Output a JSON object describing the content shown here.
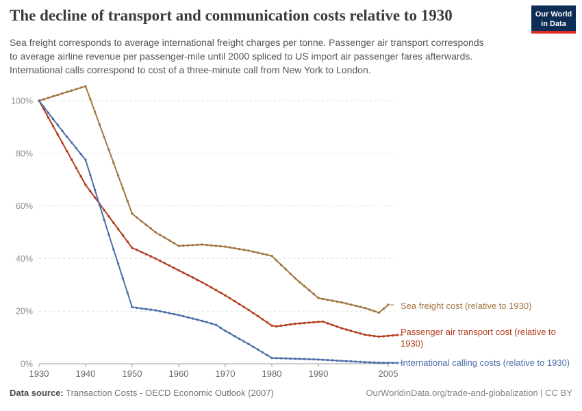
{
  "header": {
    "title": "The decline of transport and communication costs relative to 1930",
    "subtitle_lines": [
      "Sea freight corresponds to average international freight charges per tonne. Passenger air transport corresponds",
      "to average airline revenue per passenger-mile until 2000 spliced to US import air passenger fares afterwards.",
      "International calls correspond to cost of a three-minute call from New York to London."
    ],
    "logo": {
      "line1": "Our World",
      "line2": "in Data",
      "bg": "#0d2d54",
      "bar": "#e02b20"
    }
  },
  "chart_data": {
    "type": "line",
    "title": "The decline of transport and communication costs relative to 1930",
    "xlabel": "",
    "ylabel": "",
    "x_range": [
      1930,
      2007
    ],
    "y_range": [
      0,
      106
    ],
    "grid": "dashed-horizontal",
    "legend_position": "right-end-labels",
    "x_tick_values": [
      1930,
      1940,
      1950,
      1960,
      1970,
      1980,
      1990,
      2005
    ],
    "x_tick_labels": [
      "1930",
      "1940",
      "1950",
      "1960",
      "1970",
      "1980",
      "1990",
      "2005"
    ],
    "y_tick_values": [
      0,
      20,
      40,
      60,
      80,
      100
    ],
    "y_tick_labels": [
      "0%",
      "20%",
      "40%",
      "60%",
      "80%",
      "100%"
    ],
    "series": [
      {
        "name": "Sea freight cost (relative to 1930)",
        "color": "#a1753f",
        "points": [
          [
            1930,
            100
          ],
          [
            1940,
            105.5
          ],
          [
            1950,
            57
          ],
          [
            1955,
            50
          ],
          [
            1960,
            44.8
          ],
          [
            1965,
            45.3
          ],
          [
            1970,
            44.5
          ],
          [
            1975,
            43
          ],
          [
            1980,
            41
          ],
          [
            1985,
            32.5
          ],
          [
            1990,
            25
          ],
          [
            1991,
            24.6
          ],
          [
            1995,
            23.3
          ],
          [
            2000,
            21.2
          ],
          [
            2003,
            19.4
          ],
          [
            2005,
            22.4
          ]
        ]
      },
      {
        "name": "Passenger air transport cost (relative to 1930)",
        "color": "#b23c1b",
        "points": [
          [
            1930,
            100
          ],
          [
            1935,
            84
          ],
          [
            1940,
            68
          ],
          [
            1945,
            56
          ],
          [
            1950,
            44
          ],
          [
            1951,
            43.3
          ],
          [
            1955,
            40
          ],
          [
            1960,
            35.5
          ],
          [
            1965,
            31
          ],
          [
            1970,
            26
          ],
          [
            1975,
            20.5
          ],
          [
            1980,
            14.5
          ],
          [
            1981,
            14.2
          ],
          [
            1985,
            15.2
          ],
          [
            1990,
            15.9
          ],
          [
            1991,
            16
          ],
          [
            1995,
            13.5
          ],
          [
            2000,
            11
          ],
          [
            2003,
            10.3
          ],
          [
            2005,
            10.6
          ],
          [
            2007,
            10.9
          ]
        ]
      },
      {
        "name": "International calling costs (relative to 1930)",
        "color": "#4c6ea9",
        "points": [
          [
            1930,
            100
          ],
          [
            1935,
            88.5
          ],
          [
            1940,
            77.5
          ],
          [
            1945,
            49
          ],
          [
            1950,
            21.5
          ],
          [
            1955,
            20.3
          ],
          [
            1960,
            18.5
          ],
          [
            1965,
            16.3
          ],
          [
            1968,
            14.8
          ],
          [
            1970,
            12.5
          ],
          [
            1975,
            7.5
          ],
          [
            1980,
            2.2
          ],
          [
            1985,
            1.9
          ],
          [
            1990,
            1.6
          ],
          [
            1995,
            1.1
          ],
          [
            2000,
            0.6
          ],
          [
            2003,
            0.4
          ],
          [
            2007,
            0.3
          ]
        ]
      }
    ]
  },
  "footer": {
    "source_label": "Data source:",
    "source_text": " Transaction Costs - OECD Economic Outlook (2007)",
    "right_text": "OurWorldinData.org/trade-and-globalization | CC BY"
  }
}
